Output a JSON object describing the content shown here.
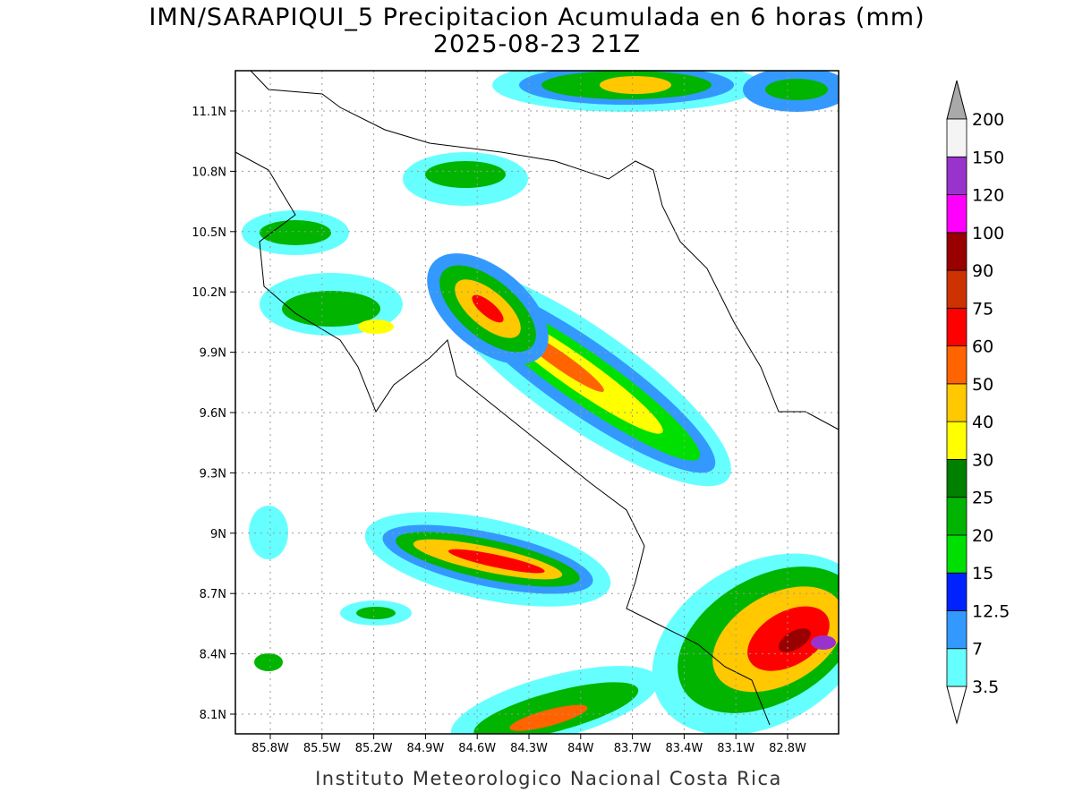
{
  "title": "IMN/SARAPIQUI_5 Precipitacion Acumulada en 6 horas (mm)",
  "subtitle": "2025-08-23 21Z",
  "map": {
    "lat_labels": [
      "11.1N",
      "10.8N",
      "10.5N",
      "10.2N",
      "9.9N",
      "9.6N",
      "9.3N",
      "9N",
      "8.7N",
      "8.4N",
      "8.1N"
    ],
    "lon_labels": [
      "85.8W",
      "85.5W",
      "85.2W",
      "84.9W",
      "84.6W",
      "84.3W",
      "84W",
      "83.7W",
      "83.4W",
      "83.1W",
      "82.8W"
    ]
  },
  "colorbar": {
    "levels": [
      3.5,
      7,
      12.5,
      15,
      20,
      25,
      30,
      40,
      50,
      60,
      75,
      90,
      100,
      120,
      150,
      200
    ],
    "colors": [
      "#66ffff",
      "#3399ff",
      "#0022ff",
      "#00e000",
      "#00b400",
      "#008000",
      "#ffff00",
      "#ffc800",
      "#ff6400",
      "#ff0000",
      "#cc3300",
      "#990000",
      "#ff00ff",
      "#9933cc",
      "#f4f4f4"
    ],
    "under_color": "#ffffff",
    "over_color": "#a9a9a9"
  },
  "footer": "Instituto Meteorologico Nacional Costa Rica"
}
